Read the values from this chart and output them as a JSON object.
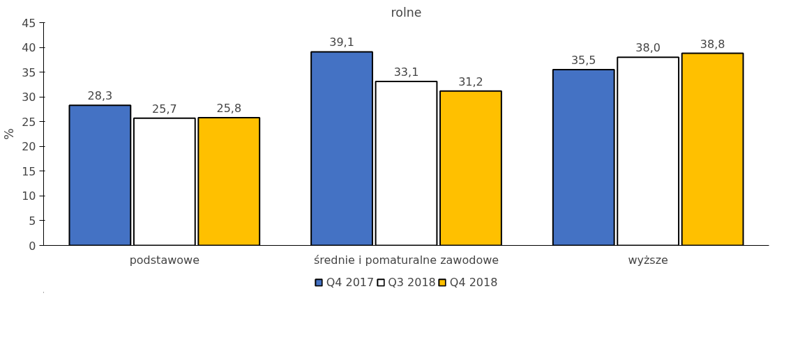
{
  "chart_data": {
    "type": "bar",
    "title": "rolne",
    "ylabel": "%",
    "categories": [
      "podstawowe",
      "średnie i pomaturalne zawodowe",
      "wyższe"
    ],
    "series": [
      {
        "name": "Q4 2017",
        "color": "#4472c4",
        "values": [
          28.3,
          39.1,
          35.5
        ],
        "value_labels": [
          "28,3",
          "39,1",
          "35,5"
        ]
      },
      {
        "name": "Q3 2018",
        "color": "#ffffff",
        "values": [
          25.7,
          33.1,
          38.0
        ],
        "value_labels": [
          "25,7",
          "33,1",
          "38,0"
        ]
      },
      {
        "name": "Q4 2018",
        "color": "#ffc000",
        "values": [
          25.8,
          31.2,
          38.8
        ],
        "value_labels": [
          "25,8",
          "31,2",
          "38,8"
        ]
      }
    ],
    "ylim": [
      0,
      45
    ],
    "yticks": [
      0,
      5,
      10,
      15,
      20,
      25,
      30,
      35,
      40,
      45
    ],
    "grid": false,
    "legend": "bottom"
  }
}
